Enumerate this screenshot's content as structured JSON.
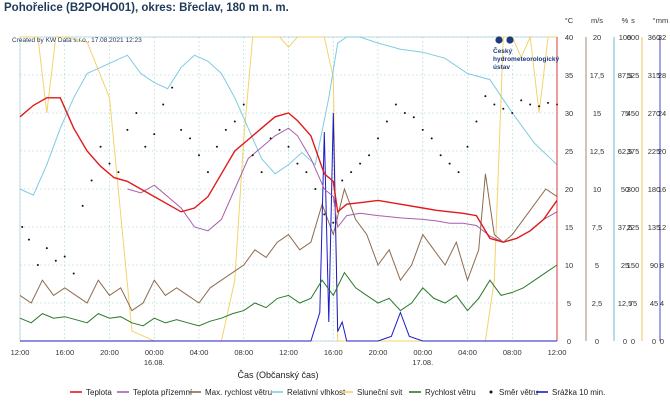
{
  "title": "Pohořelice (B2POHO01), okres: Břeclav, 180 m n. m.",
  "created": "Created by KW Data s.r.o., 17.08.2021 12:23",
  "logo": {
    "line1": "Český",
    "line2": "hydrometeorologický",
    "line3": "ústav"
  },
  "colors": {
    "teplota": "#e0191b",
    "teplota_prizemni": "#a85fa9",
    "max_rychlost": "#8f6a4d",
    "vlhkost": "#7fcbe0",
    "slunecni": "#f3d36b",
    "rychlost": "#2b7a2b",
    "smer": "#111111",
    "srazka": "#1c1cc4"
  },
  "chart_data": {
    "type": "line",
    "xlabel": "Čas (Občanský čas)",
    "x_ticks": [
      "12:00",
      "16:00",
      "20:00",
      "00:00",
      "04:00",
      "08:00",
      "12:00",
      "16:00",
      "20:00",
      "00:00",
      "04:00",
      "08:00",
      "12:00"
    ],
    "date_labels": [
      {
        "at": 3,
        "label": "16.08."
      },
      {
        "at": 9,
        "label": "17.08."
      }
    ],
    "axes": [
      {
        "unit": "°C",
        "min": 0,
        "max": 40,
        "ticks": [
          "0",
          "5",
          "10",
          "15",
          "20",
          "25",
          "30",
          "35",
          "40"
        ],
        "color": "#e0191b"
      },
      {
        "unit": "m/s",
        "min": 0,
        "max": 20,
        "ticks": [
          "0",
          "2,5",
          "5",
          "7,5",
          "10",
          "12,5",
          "15",
          "17,5",
          "20"
        ],
        "color": "#8f6a4d"
      },
      {
        "unit": "%",
        "min": 0,
        "max": 100,
        "ticks": [
          "0",
          "12,5",
          "25",
          "37,5",
          "50",
          "62,5",
          "75",
          "87,5",
          "100"
        ],
        "color": "#4aa8c8"
      },
      {
        "unit": "s",
        "min": 0,
        "max": 600,
        "ticks": [
          "0",
          "75",
          "150",
          "225",
          "300",
          "375",
          "450",
          "525",
          "600"
        ],
        "color": "#e7b43c"
      },
      {
        "unit": "°",
        "min": 0,
        "max": 360,
        "ticks": [
          "0",
          "45",
          "90",
          "135",
          "180",
          "225",
          "270",
          "315",
          "360"
        ],
        "color": "#111111"
      },
      {
        "unit": "mm",
        "min": 0,
        "max": 32,
        "ticks": [
          "0",
          "4",
          "8",
          "12",
          "16",
          "20",
          "24",
          "28",
          "32"
        ],
        "color": "#1c1cc4"
      }
    ],
    "series": [
      {
        "name": "Teplota",
        "axis": 0,
        "color": "#e0191b",
        "x": [
          0,
          0.3,
          0.6,
          0.9,
          1.2,
          1.5,
          1.8,
          2.1,
          2.4,
          2.7,
          3.0,
          3.3,
          3.6,
          3.9,
          4.2,
          4.5,
          4.8,
          5.1,
          5.4,
          5.7,
          6.0,
          6.2,
          6.5,
          6.8,
          7.0,
          7.1,
          7.3,
          7.6,
          8.0,
          8.5,
          9.0,
          9.3,
          9.6,
          9.9,
          10.2,
          10.5,
          10.8,
          11.1,
          11.4,
          11.7,
          12.0
        ],
        "y": [
          29.5,
          31,
          32,
          32,
          28,
          25,
          23,
          21.5,
          21,
          20,
          19,
          18,
          17,
          17.5,
          19,
          22,
          25,
          26.5,
          28,
          29.5,
          30,
          29,
          27,
          22,
          21,
          17,
          18,
          18.2,
          18.5,
          18,
          17.5,
          17.2,
          17,
          16.8,
          16.5,
          13.5,
          13,
          13.5,
          14.5,
          16,
          18.5
        ]
      },
      {
        "name": "Teplota přízemní",
        "axis": 0,
        "color": "#a85fa9",
        "x": [
          2.4,
          2.7,
          3.0,
          3.3,
          3.6,
          3.9,
          4.2,
          4.5,
          4.8,
          5.1,
          5.4,
          5.7,
          6.0,
          6.2,
          6.5,
          6.8,
          7.0,
          7.1,
          7.3,
          7.6,
          8.0,
          8.5,
          9.0,
          9.3,
          9.6,
          9.9,
          10.2,
          10.5,
          10.8,
          11.1,
          11.4,
          11.7,
          12.0
        ],
        "y": [
          20,
          19.5,
          20.5,
          19,
          17.5,
          15,
          14.5,
          16,
          20,
          24,
          25.5,
          27,
          28,
          27,
          24,
          20,
          19,
          15,
          16.5,
          16.8,
          16.5,
          16.2,
          16,
          15.8,
          15.5,
          15.5,
          15.2,
          13.8,
          13,
          13.5,
          14.5,
          16,
          17
        ]
      },
      {
        "name": "Max. rychlost větru",
        "axis": 1,
        "color": "#8f6a4d",
        "x": [
          0,
          0.25,
          0.5,
          0.75,
          1.0,
          1.25,
          1.5,
          1.75,
          2.0,
          2.25,
          2.5,
          2.75,
          3.0,
          3.25,
          3.5,
          3.75,
          4.0,
          4.25,
          4.5,
          4.75,
          5.0,
          5.25,
          5.5,
          5.75,
          6.0,
          6.25,
          6.5,
          6.75,
          7.0,
          7.25,
          7.5,
          7.75,
          8.0,
          8.25,
          8.5,
          8.75,
          9.0,
          9.25,
          9.5,
          9.75,
          10.0,
          10.25,
          10.4,
          10.6,
          10.8,
          11.0,
          11.25,
          11.5,
          11.75,
          12.0
        ],
        "y": [
          3,
          2.5,
          4,
          3,
          3.5,
          3,
          2.5,
          4,
          3,
          3.5,
          2,
          2.5,
          4,
          3,
          3.5,
          3,
          2.5,
          3.5,
          4,
          4.5,
          5,
          6,
          5.5,
          6.5,
          7,
          6,
          6.5,
          9,
          7,
          10,
          8,
          7,
          5,
          6,
          4,
          5,
          7,
          6,
          5,
          6.5,
          4,
          6,
          11,
          7,
          6.5,
          7,
          8,
          9,
          10,
          9.5
        ]
      },
      {
        "name": "Relativní vlhkost",
        "axis": 2,
        "color": "#7fcbe0",
        "x": [
          0,
          0.3,
          0.6,
          0.9,
          1.2,
          1.5,
          1.8,
          2.1,
          2.4,
          2.7,
          3.0,
          3.3,
          3.6,
          3.9,
          4.2,
          4.5,
          4.8,
          5.1,
          5.4,
          5.7,
          6.0,
          6.3,
          6.6,
          6.9,
          7.1,
          7.3,
          7.6,
          8.0,
          8.5,
          9.0,
          9.5,
          10.0,
          10.5,
          11.0,
          11.5,
          12.0
        ],
        "y": [
          50,
          48,
          58,
          70,
          80,
          88,
          90,
          92,
          94,
          88,
          85,
          83,
          90,
          94,
          92,
          88,
          80,
          70,
          60,
          55,
          58,
          62,
          58,
          80,
          98,
          100,
          100,
          98,
          96,
          95,
          93,
          88,
          86,
          75,
          65,
          58
        ]
      },
      {
        "name": "Sluneční svit",
        "axis": 3,
        "color": "#f3d36b",
        "x": [
          0,
          0.4,
          0.6,
          0.8,
          1.0,
          1.5,
          2.0,
          2.5,
          3.0,
          4.0,
          4.5,
          4.8,
          5.0,
          5.2,
          5.5,
          5.8,
          6.0,
          6.2,
          6.5,
          6.8,
          7.0,
          7.1,
          7.5,
          8.0,
          9.0,
          10.0,
          10.4,
          10.6,
          10.8,
          11.0,
          11.2,
          11.4,
          11.6,
          11.8,
          12.0
        ],
        "y": [
          600,
          600,
          450,
          600,
          600,
          590,
          480,
          20,
          0,
          0,
          0,
          120,
          400,
          600,
          600,
          600,
          580,
          600,
          600,
          600,
          520,
          0,
          0,
          0,
          0,
          0,
          0,
          120,
          600,
          600,
          560,
          600,
          450,
          600,
          600
        ]
      },
      {
        "name": "Rychlost větru",
        "axis": 1,
        "color": "#2b7a2b",
        "x": [
          0,
          0.25,
          0.5,
          0.75,
          1.0,
          1.25,
          1.5,
          1.75,
          2.0,
          2.25,
          2.5,
          2.75,
          3.0,
          3.25,
          3.5,
          3.75,
          4.0,
          4.25,
          4.5,
          4.75,
          5.0,
          5.25,
          5.5,
          5.75,
          6.0,
          6.25,
          6.5,
          6.75,
          7.0,
          7.25,
          7.5,
          7.75,
          8.0,
          8.25,
          8.5,
          8.75,
          9.0,
          9.25,
          9.5,
          9.75,
          10.0,
          10.25,
          10.5,
          10.75,
          11.0,
          11.25,
          11.5,
          11.75,
          12.0
        ],
        "y": [
          1.5,
          1.2,
          1.8,
          1.5,
          1.6,
          1.4,
          1.2,
          1.8,
          1.5,
          1.6,
          1.2,
          1.0,
          1.5,
          1.2,
          1.4,
          1.2,
          1.0,
          1.3,
          1.5,
          1.8,
          2.0,
          2.5,
          2.2,
          2.8,
          3.0,
          2.5,
          2.8,
          4.0,
          3.0,
          4.5,
          3.5,
          3.0,
          2.5,
          2.8,
          2.0,
          2.5,
          3.5,
          2.8,
          2.5,
          3.0,
          2.0,
          2.8,
          4.0,
          3.0,
          3.2,
          3.5,
          4.0,
          4.5,
          5.0
        ]
      },
      {
        "name": "Srážka 10 min.",
        "axis": 5,
        "color": "#1c1cc4",
        "x": [
          0,
          6.5,
          6.7,
          6.8,
          6.9,
          7.0,
          7.1,
          7.2,
          7.3,
          7.5,
          7.8,
          8.0,
          8.3,
          8.5,
          8.7,
          9.0,
          10.0,
          12.0
        ],
        "y": [
          0,
          0,
          3,
          22,
          2,
          24,
          1,
          2,
          0,
          0,
          0,
          0,
          0.5,
          3,
          0.5,
          0,
          0,
          0
        ]
      }
    ],
    "wind_direction": {
      "name": "Směr větru",
      "axis": 4,
      "x": [
        0.05,
        0.2,
        0.4,
        0.6,
        0.8,
        1.0,
        1.2,
        1.4,
        1.6,
        1.8,
        2.0,
        2.2,
        2.4,
        2.6,
        2.8,
        3.0,
        3.2,
        3.4,
        3.6,
        3.8,
        4.0,
        4.2,
        4.4,
        4.6,
        4.8,
        5.0,
        5.2,
        5.4,
        5.6,
        5.8,
        6.0,
        6.2,
        6.4,
        6.6,
        6.8,
        7.0,
        7.2,
        7.4,
        7.6,
        7.8,
        8.0,
        8.2,
        8.4,
        8.6,
        8.8,
        9.0,
        9.2,
        9.4,
        9.6,
        9.8,
        10.0,
        10.2,
        10.4,
        10.6,
        10.8,
        11.0,
        11.2,
        11.4,
        11.6,
        11.8,
        12.0
      ],
      "y": [
        135,
        120,
        90,
        110,
        95,
        100,
        80,
        160,
        190,
        230,
        210,
        200,
        250,
        270,
        230,
        245,
        280,
        300,
        250,
        240,
        220,
        200,
        230,
        250,
        260,
        280,
        220,
        200,
        240,
        250,
        230,
        210,
        200,
        180,
        150,
        140,
        190,
        200,
        210,
        220,
        240,
        260,
        280,
        270,
        265,
        250,
        240,
        220,
        210,
        200,
        230,
        260,
        290,
        280,
        275,
        270,
        285,
        280,
        278,
        282,
        280
      ]
    },
    "legend": [
      "Teplota",
      "Teplota přízemní",
      "Max. rychlost větru",
      "Relativní vlhkost",
      "Sluneční svit",
      "Rychlost větru",
      "Směr větru",
      "Srážka 10 min."
    ]
  }
}
